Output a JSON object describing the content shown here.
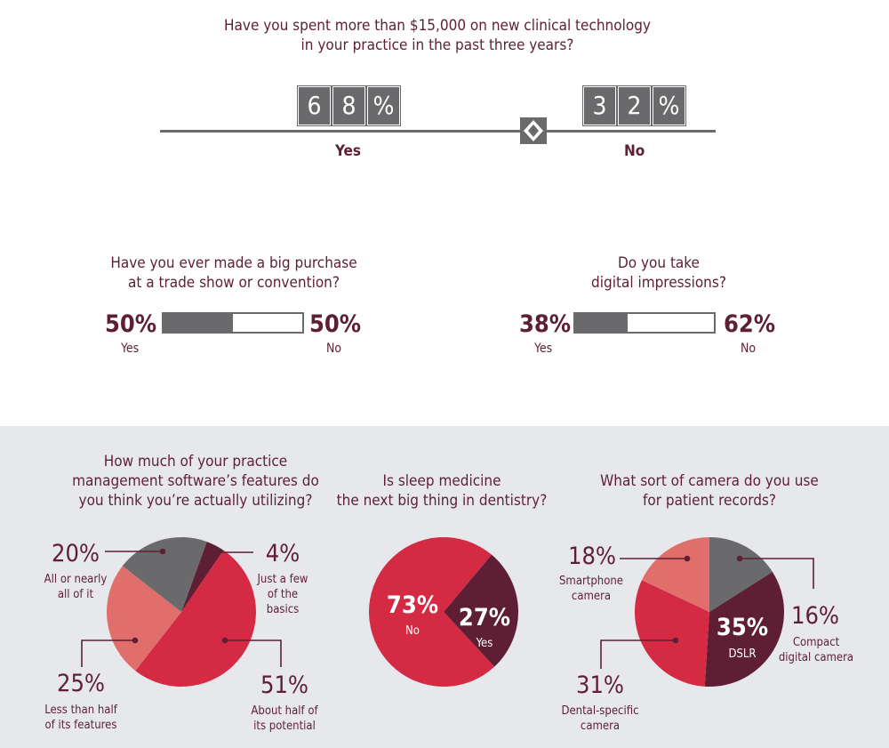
{
  "colors": {
    "maroon": "#5e1f34",
    "red": "#d42a43",
    "salmon": "#e06f6b",
    "grey": "#6a6a6c",
    "panel": "#e7e8ec"
  },
  "q1": {
    "title_line1": "Have you spent more than $15,000 on new clinical technology",
    "title_line2": "in your practice in the past three years?",
    "yes_digits": [
      "6",
      "8",
      "%"
    ],
    "no_digits": [
      "3",
      "2",
      "%"
    ],
    "yes_label": "Yes",
    "no_label": "No",
    "separator_icon": "diamond-slider-icon"
  },
  "q2": {
    "title_line1": "Have you ever made a big purchase",
    "title_line2": "at a trade show or convention?",
    "yes_pct": "50%",
    "yes_label": "Yes",
    "no_pct": "50%",
    "no_label": "No",
    "yes_value": 50
  },
  "q3": {
    "title_line1": "Do you take",
    "title_line2": "digital impressions?",
    "yes_pct": "38%",
    "yes_label": "Yes",
    "no_pct": "62%",
    "no_label": "No",
    "yes_value": 38
  },
  "q4": {
    "title_line1": "How much of your practice",
    "title_line2": "management software’s features do",
    "title_line3": "you think you’re actually utilizing?"
  },
  "q5": {
    "title_line1": "Is sleep medicine",
    "title_line2": "the next big thing in dentistry?"
  },
  "q6": {
    "title_line1": "What sort of camera do you use",
    "title_line2": "for patient records?"
  },
  "chart_data": [
    {
      "type": "bar",
      "title": "Have you spent more than $15,000 on new clinical technology in your practice in the past three years?",
      "categories": [
        "Yes",
        "No"
      ],
      "values": [
        68,
        32
      ]
    },
    {
      "type": "bar",
      "title": "Have you ever made a big purchase at a trade show or convention?",
      "categories": [
        "Yes",
        "No"
      ],
      "values": [
        50,
        50
      ]
    },
    {
      "type": "bar",
      "title": "Do you take digital impressions?",
      "categories": [
        "Yes",
        "No"
      ],
      "values": [
        38,
        62
      ]
    },
    {
      "type": "pie",
      "title": "How much of your practice management software’s features do you think you’re actually utilizing?",
      "slices": [
        {
          "label": "Just a few of the basics",
          "value": 4,
          "pct": "4%",
          "line1": "Just a few",
          "line2": "of the",
          "line3": "basics",
          "color": "#5e1f34"
        },
        {
          "label": "About half of its potential",
          "value": 51,
          "pct": "51%",
          "line1": "About half of",
          "line2": "its potential",
          "color": "#d42a43"
        },
        {
          "label": "Less than half of its features",
          "value": 25,
          "pct": "25%",
          "line1": "Less than half",
          "line2": "of its features",
          "color": "#e06f6b"
        },
        {
          "label": "All or nearly all of it",
          "value": 20,
          "pct": "20%",
          "line1": "All or nearly",
          "line2": "all of it",
          "color": "#6a6a6c"
        }
      ]
    },
    {
      "type": "pie",
      "title": "Is sleep medicine the next big thing in dentistry?",
      "slices": [
        {
          "label": "Yes",
          "value": 27,
          "pct": "27%",
          "color": "#5e1f34"
        },
        {
          "label": "No",
          "value": 73,
          "pct": "73%",
          "color": "#d42a43"
        }
      ]
    },
    {
      "type": "pie",
      "title": "What sort of camera do you use for patient records?",
      "slices": [
        {
          "label": "Compact digital camera",
          "value": 16,
          "pct": "16%",
          "line1": "Compact",
          "line2": "digital camera",
          "color": "#6a6a6c"
        },
        {
          "label": "DSLR",
          "value": 35,
          "pct": "35%",
          "color": "#5e1f34"
        },
        {
          "label": "Dental-specific camera",
          "value": 31,
          "pct": "31%",
          "line1": "Dental-specific",
          "line2": "camera",
          "color": "#d42a43"
        },
        {
          "label": "Smartphone camera",
          "value": 18,
          "pct": "18%",
          "line1": "Smartphone",
          "line2": "camera",
          "color": "#e06f6b"
        }
      ]
    }
  ]
}
